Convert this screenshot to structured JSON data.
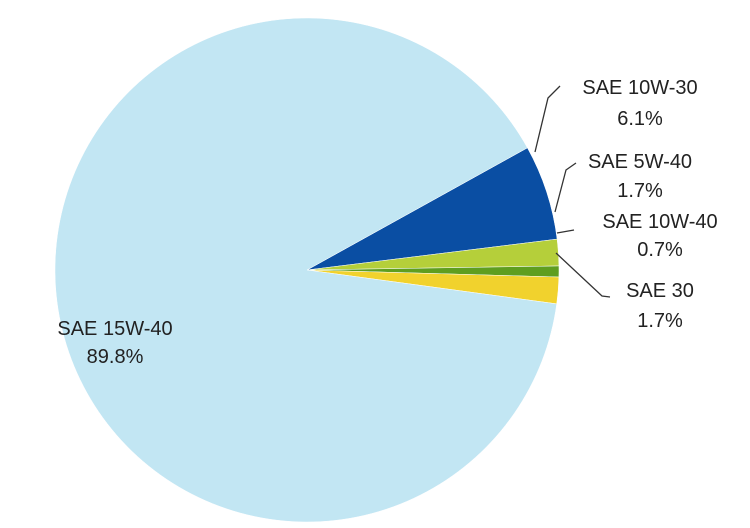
{
  "chart_data": {
    "type": "pie",
    "title": "",
    "series": [
      {
        "slices": [
          {
            "label": "SAE 10W-30",
            "value": 6.1,
            "value_label": "6.1%",
            "color": "#0a4ea3"
          },
          {
            "label": "SAE 5W-40",
            "value": 1.7,
            "value_label": "1.7%",
            "color": "#b5cf3a"
          },
          {
            "label": "SAE 10W-40",
            "value": 0.7,
            "value_label": "0.7%",
            "color": "#5f9e1f"
          },
          {
            "label": "SAE 30",
            "value": 1.7,
            "value_label": "1.7%",
            "color": "#f1d22d"
          },
          {
            "label": "SAE 15W-40",
            "value": 89.8,
            "value_label": "89.8%",
            "color": "#c2e6f3"
          }
        ]
      }
    ],
    "legend": "none",
    "labels": "outside with leader lines"
  }
}
